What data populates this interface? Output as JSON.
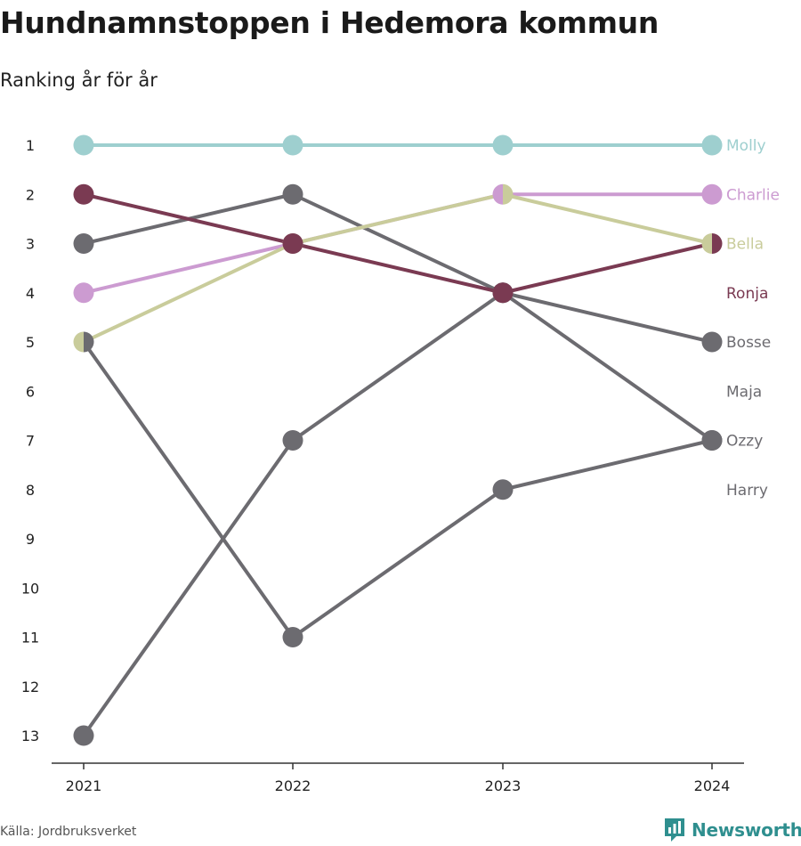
{
  "title": "Hundnamnstoppen i Hedemora kommun",
  "subtitle": "Ranking år för år",
  "source": "Källa: Jordbruksverket",
  "brand": {
    "name": "Newsworthy",
    "icon": "chart-logo-icon",
    "color": "#2f8f8f"
  },
  "chart_data": {
    "type": "line",
    "x": [
      "2021",
      "2022",
      "2023",
      "2024"
    ],
    "y_ticks": [
      1,
      2,
      3,
      4,
      5,
      6,
      7,
      8,
      9,
      10,
      11,
      12,
      13
    ],
    "y_range": [
      1,
      13
    ],
    "y_reversed": true,
    "grid": false,
    "series": [
      {
        "name": "Molly",
        "color": "#9ecfcf",
        "values": [
          1,
          1,
          1,
          1
        ]
      },
      {
        "name": "Charlie",
        "color": "#cc9bd1",
        "values": [
          4,
          3,
          2,
          2
        ]
      },
      {
        "name": "Bella",
        "color": "#c9cc9b",
        "values": [
          5,
          3,
          2,
          3
        ]
      },
      {
        "name": "Ronja",
        "color": "#7a3a52",
        "values": [
          2,
          3,
          4,
          3
        ]
      },
      {
        "name": "Bosse",
        "color": "#6c6b70",
        "values": [
          3,
          2,
          4,
          5
        ]
      },
      {
        "name": "Maja",
        "color": "#6c6b70",
        "values": [
          5,
          11,
          8,
          7
        ]
      },
      {
        "name": "Ozzy",
        "color": "#6c6b70",
        "values": [
          13,
          7,
          4,
          7
        ]
      },
      {
        "name": "Harry",
        "color": "#6c6b70",
        "values": [
          null,
          null,
          null,
          null
        ]
      }
    ],
    "end_labels": [
      {
        "name": "Molly",
        "rank": 1,
        "color": "#9ecfcf"
      },
      {
        "name": "Charlie",
        "rank": 2,
        "color": "#cc9bd1"
      },
      {
        "name": "Bella",
        "rank": 3,
        "color": "#c9cc9b"
      },
      {
        "name": "Ronja",
        "rank": 4,
        "color": "#7a3a52"
      },
      {
        "name": "Bosse",
        "rank": 5,
        "color": "#6c6b70"
      },
      {
        "name": "Maja",
        "rank": 6,
        "color": "#6c6b70"
      },
      {
        "name": "Ozzy",
        "rank": 7,
        "color": "#6c6b70"
      },
      {
        "name": "Harry",
        "rank": 8,
        "color": "#6c6b70"
      }
    ]
  }
}
